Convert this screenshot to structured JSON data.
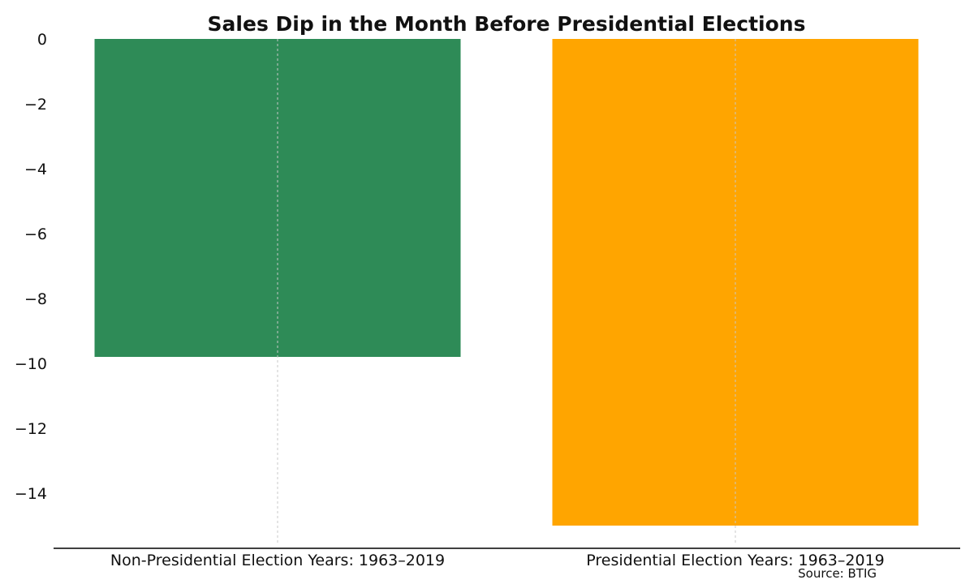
{
  "chart_data": {
    "type": "bar",
    "title": "Sales Dip in the Month Before Presidential Elections",
    "xlabel": "",
    "ylabel": "",
    "categories": [
      "Non-Presidential Election Years: 1963–2019",
      "Presidential Election Years: 1963–2019"
    ],
    "values": [
      -9.8,
      -15.0
    ],
    "colors": [
      "#2e8b57",
      "#ffa500"
    ],
    "ylim": [
      -15.7,
      0
    ],
    "yticks": [
      0,
      -2,
      -4,
      -6,
      -8,
      -10,
      -12,
      -14
    ],
    "ytick_labels": [
      "0",
      "−2",
      "−4",
      "−6",
      "−8",
      "−10",
      "−12",
      "−14"
    ],
    "grid": "vertical dashed",
    "legend": "none"
  },
  "source": "Source: BTIG"
}
